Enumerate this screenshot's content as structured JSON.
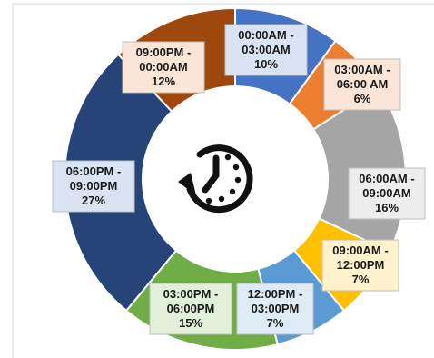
{
  "chart_data": {
    "type": "donut",
    "title": "",
    "center_icon": "clock-history-icon",
    "slices": [
      {
        "label": "00:00AM -\n03:00AM",
        "value": 10,
        "value_label": "10%",
        "color": "#4472c4",
        "label_bg": "#dae3f3"
      },
      {
        "label": "03:00AM -\n06:00 AM",
        "value": 6,
        "value_label": "6%",
        "color": "#ed7d31",
        "label_bg": "#fbe5d6"
      },
      {
        "label": "06:00AM -\n09:00AM",
        "value": 16,
        "value_label": "16%",
        "color": "#a5a5a5",
        "label_bg": "#ededed"
      },
      {
        "label": "09:00AM -\n12:00PM",
        "value": 7,
        "value_label": "7%",
        "color": "#ffc000",
        "label_bg": "#fff2cc"
      },
      {
        "label": "12:00PM -\n03:00PM",
        "value": 7,
        "value_label": "7%",
        "color": "#5b9bd5",
        "label_bg": "#deebf7"
      },
      {
        "label": "03:00PM -\n06:00PM",
        "value": 15,
        "value_label": "15%",
        "color": "#70ad47",
        "label_bg": "#e2f0d9"
      },
      {
        "label": "06:00PM -\n09:00PM",
        "value": 27,
        "value_label": "27%",
        "color": "#264478",
        "label_bg": "#dae3f3"
      },
      {
        "label": "09:00PM -\n00:00AM",
        "value": 12,
        "value_label": "12%",
        "color": "#9e480e",
        "label_bg": "#fbe5d6"
      }
    ]
  }
}
